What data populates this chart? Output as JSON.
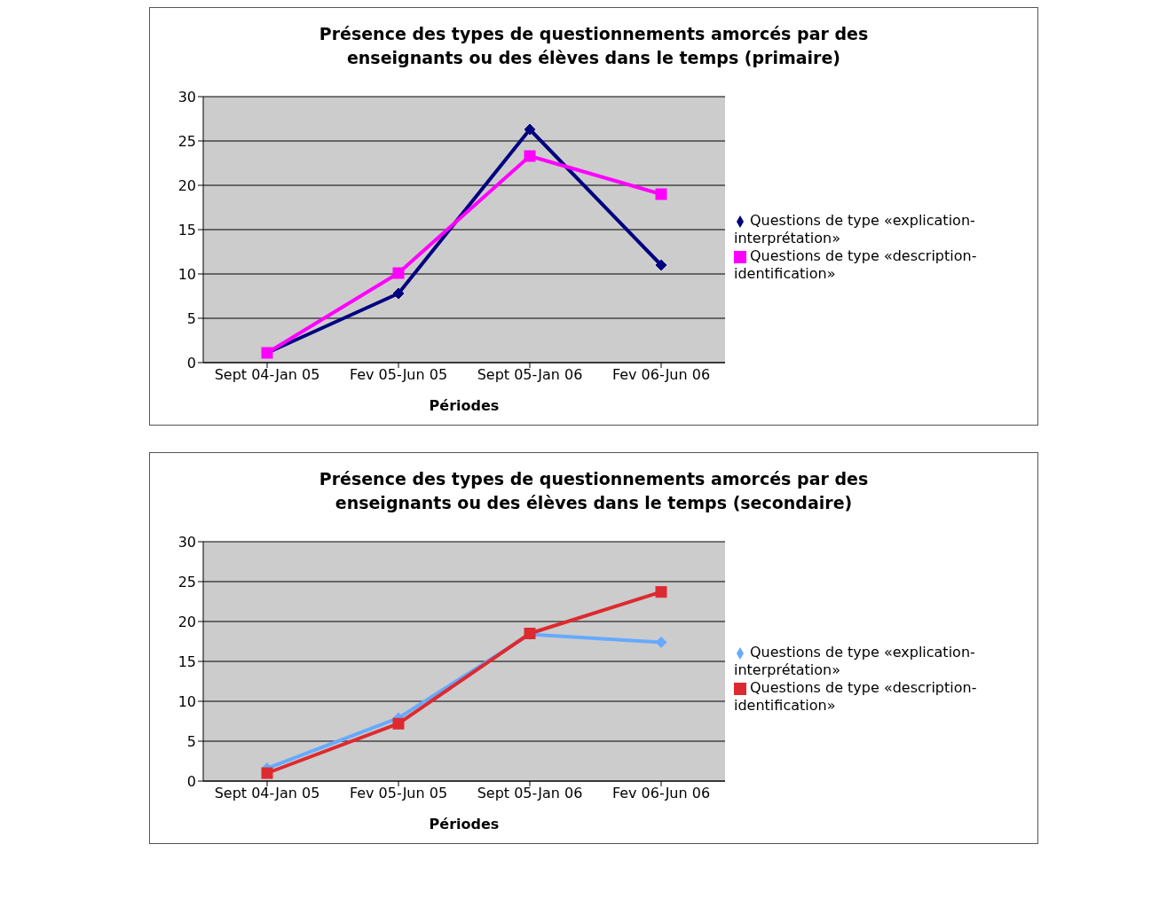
{
  "chart_data": [
    {
      "type": "line",
      "title": "Présence des types de questionnements amorcés par des enseignants ou des élèves dans le temps (primaire)",
      "xlabel": "Périodes",
      "categories": [
        "Sept 04-Jan 05",
        "Fev 05-Jun 05",
        "Sept 05-Jan 06",
        "Fev 06-Jun 06"
      ],
      "series": [
        {
          "name": "Questions de type «explication-interprétation»",
          "color": "#000080",
          "marker": "diamond",
          "values": [
            1.1,
            7.8,
            26.3,
            11.0
          ]
        },
        {
          "name": "Questions de type «description-identification»",
          "color": "#ff00ff",
          "marker": "square",
          "values": [
            1.1,
            10.1,
            23.3,
            19.0
          ]
        }
      ],
      "ylim": [
        0,
        30
      ],
      "yticks": [
        0,
        5,
        10,
        15,
        20,
        25,
        30
      ],
      "grid": "y",
      "legend": "right"
    },
    {
      "type": "line",
      "title": "Présence des types de questionnements amorcés par des enseignants ou des élèves dans le temps (secondaire)",
      "xlabel": "Périodes",
      "categories": [
        "Sept 04-Jan 05",
        "Fev 05-Jun 05",
        "Sept 05-Jan 06",
        "Fev 06-Jun 06"
      ],
      "series": [
        {
          "name": "Questions de type «explication-interprétation»",
          "color": "#66aaff",
          "marker": "diamond",
          "values": [
            1.6,
            7.9,
            18.4,
            17.4
          ]
        },
        {
          "name": "Questions de type «description-identification»",
          "color": "#dd2a30",
          "marker": "square",
          "values": [
            1.0,
            7.2,
            18.5,
            23.7
          ]
        }
      ],
      "ylim": [
        0,
        30
      ],
      "yticks": [
        0,
        5,
        10,
        15,
        20,
        25,
        30
      ],
      "grid": "y",
      "legend": "right"
    }
  ]
}
